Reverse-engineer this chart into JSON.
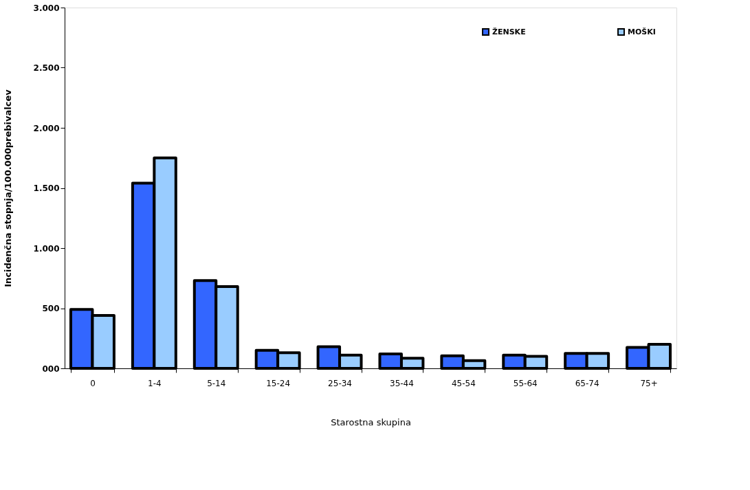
{
  "chart_data": {
    "type": "bar",
    "xlabel": "Starostna skupina",
    "ylabel": "Incidenčna stopnja/100.000prebivalcev",
    "categories": [
      "0",
      "1-4",
      "5-14",
      "15-24",
      "25-34",
      "35-44",
      "45-54",
      "55-64",
      "65-74",
      "75+"
    ],
    "series": [
      {
        "name": "ŽENSKE",
        "color": "#3366ff",
        "values": [
          490,
          1540,
          730,
          150,
          180,
          120,
          105,
          110,
          125,
          175
        ]
      },
      {
        "name": "MOŠKI",
        "color": "#99ccff",
        "values": [
          440,
          1750,
          680,
          130,
          110,
          85,
          65,
          100,
          125,
          200
        ]
      }
    ],
    "ylim": [
      0,
      3000
    ],
    "yticks": [
      {
        "value": 0,
        "label": "000"
      },
      {
        "value": 500,
        "label": "500"
      },
      {
        "value": 1000,
        "label": "1.000"
      },
      {
        "value": 1500,
        "label": "1.500"
      },
      {
        "value": 2000,
        "label": "2.000"
      },
      {
        "value": 2500,
        "label": "2.500"
      },
      {
        "value": 3000,
        "label": "3.000"
      }
    ],
    "grid": false,
    "legend": "top right"
  }
}
